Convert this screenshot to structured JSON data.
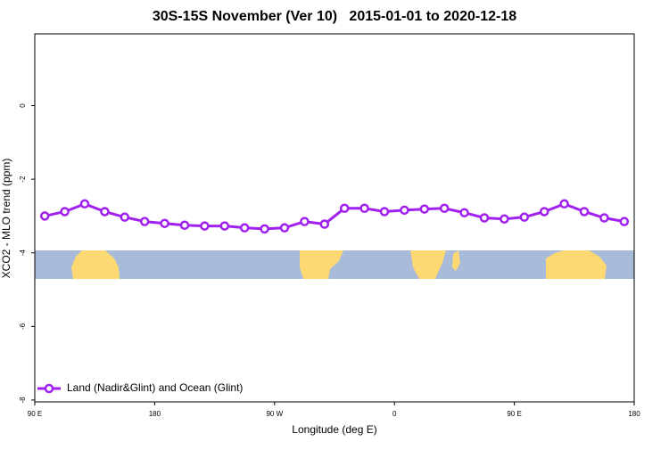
{
  "chart_data": {
    "type": "line",
    "title": "30S-15S November (Ver 10)   2015-01-01 to 2020-12-18",
    "x_label": "Longitude (deg E)",
    "y_label": "XCO2 - MLO trend (ppm)",
    "xlim": [
      90,
      540
    ],
    "xticks": [
      {
        "value": 90,
        "label": "90 E"
      },
      {
        "value": 180,
        "label": "180"
      },
      {
        "value": 270,
        "label": "90 W"
      },
      {
        "value": 360,
        "label": "0"
      },
      {
        "value": 450,
        "label": "90 E"
      },
      {
        "value": 540,
        "label": "180"
      }
    ],
    "ylim": [
      -8.05,
      1.95
    ],
    "yticks": [
      0,
      -2,
      -4,
      -6,
      -8
    ],
    "x": [
      97.5,
      112.5,
      127.5,
      142.5,
      157.5,
      172.5,
      187.5,
      202.5,
      217.5,
      232.5,
      247.5,
      262.5,
      277.5,
      292.5,
      307.5,
      322.5,
      337.5,
      352.5,
      367.5,
      382.5,
      397.5,
      412.5,
      427.5,
      442.5,
      457.5,
      472.5,
      487.5,
      502.5,
      517.5,
      532.5
    ],
    "series": [
      {
        "name": "Land (Nadir&Glint) and Ocean (Glint)",
        "color": "#a020f0",
        "values": [
          -3.0,
          -2.88,
          -2.67,
          -2.88,
          -3.03,
          -3.15,
          -3.2,
          -3.25,
          -3.27,
          -3.27,
          -3.32,
          -3.35,
          -3.32,
          -3.15,
          -3.22,
          -2.79,
          -2.79,
          -2.88,
          -2.84,
          -2.81,
          -2.79,
          -2.91,
          -3.05,
          -3.08,
          -3.03,
          -2.88,
          -2.67,
          -2.88,
          -3.05,
          -3.15
        ]
      }
    ],
    "legend": "bottom-left"
  }
}
